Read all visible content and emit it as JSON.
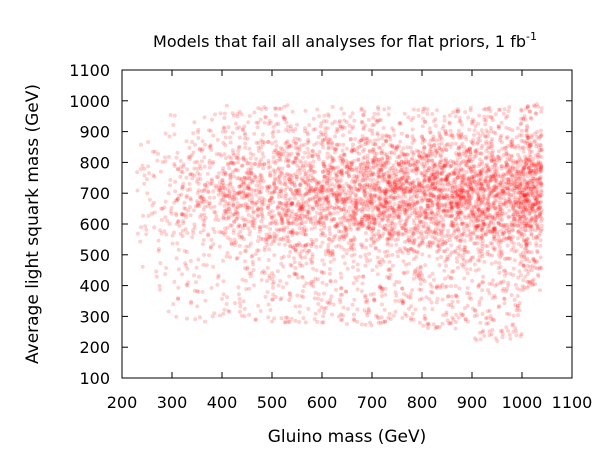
{
  "chart_data": {
    "type": "scatter",
    "title": "Models that fail all analyses for flat priors, 1 fb",
    "title_superscript": "-1",
    "xlabel": "Gluino mass (GeV)",
    "ylabel": "Average light squark mass (GeV)",
    "xlim": [
      200,
      1100
    ],
    "ylim": [
      100,
      1100
    ],
    "xticks": [
      "200",
      "300",
      "400",
      "500",
      "600",
      "700",
      "800",
      "900",
      "1000",
      "1100"
    ],
    "yticks": [
      "100",
      "200",
      "300",
      "400",
      "500",
      "600",
      "700",
      "800",
      "900",
      "1000",
      "1100"
    ],
    "grid": false,
    "legend": "none",
    "point_color": "#ff0000",
    "point_opacity": 0.18,
    "series": [
      {
        "description": "dense cloud of red semi-transparent points",
        "density_by_gluino_mass": [
          {
            "x_range": [
              230,
              300
            ],
            "y_range": [
              300,
              980
            ],
            "relative_density": 0.08
          },
          {
            "x_range": [
              300,
              400
            ],
            "y_range": [
              280,
              960
            ],
            "relative_density": 0.3
          },
          {
            "x_range": [
              400,
              500
            ],
            "y_range": [
              270,
              990
            ],
            "relative_density": 0.55
          },
          {
            "x_range": [
              500,
              600
            ],
            "y_range": [
              280,
              990
            ],
            "relative_density": 0.7
          },
          {
            "x_range": [
              600,
              700
            ],
            "y_range": [
              270,
              980
            ],
            "relative_density": 0.8
          },
          {
            "x_range": [
              700,
              800
            ],
            "y_range": [
              270,
              980
            ],
            "relative_density": 0.9
          },
          {
            "x_range": [
              800,
              900
            ],
            "y_range": [
              260,
              980
            ],
            "relative_density": 1.0
          },
          {
            "x_range": [
              900,
              1000
            ],
            "y_range": [
              220,
              980
            ],
            "relative_density": 1.0
          },
          {
            "x_range": [
              1000,
              1040
            ],
            "y_range": [
              380,
              990
            ],
            "relative_density": 0.5
          }
        ],
        "y_peak_range": [
          520,
          880
        ]
      }
    ]
  }
}
